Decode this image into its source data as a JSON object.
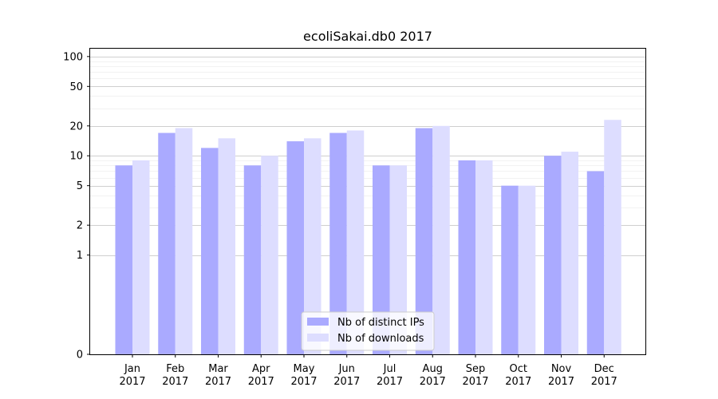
{
  "chart_data": {
    "type": "bar",
    "title": "ecoliSakai.db0 2017",
    "xlabel": "",
    "ylabel": "",
    "yscale": "symlog",
    "ylim": [
      0,
      120
    ],
    "categories": [
      [
        "Jan",
        "2017"
      ],
      [
        "Feb",
        "2017"
      ],
      [
        "Mar",
        "2017"
      ],
      [
        "Apr",
        "2017"
      ],
      [
        "May",
        "2017"
      ],
      [
        "Jun",
        "2017"
      ],
      [
        "Jul",
        "2017"
      ],
      [
        "Aug",
        "2017"
      ],
      [
        "Sep",
        "2017"
      ],
      [
        "Oct",
        "2017"
      ],
      [
        "Nov",
        "2017"
      ],
      [
        "Dec",
        "2017"
      ]
    ],
    "yticks": [
      0,
      1,
      2,
      5,
      10,
      20,
      50,
      100
    ],
    "series": [
      {
        "name": "Nb of distinct IPs",
        "color": "#aaaaff",
        "values": [
          8,
          17,
          12,
          8,
          14,
          17,
          8,
          19,
          9,
          5,
          10,
          7
        ]
      },
      {
        "name": "Nb of downloads",
        "color": "#ddddff",
        "values": [
          9,
          19,
          15,
          10,
          15,
          18,
          8,
          20,
          9,
          5,
          11,
          23
        ]
      }
    ],
    "grid": true,
    "legend": "lower center"
  }
}
